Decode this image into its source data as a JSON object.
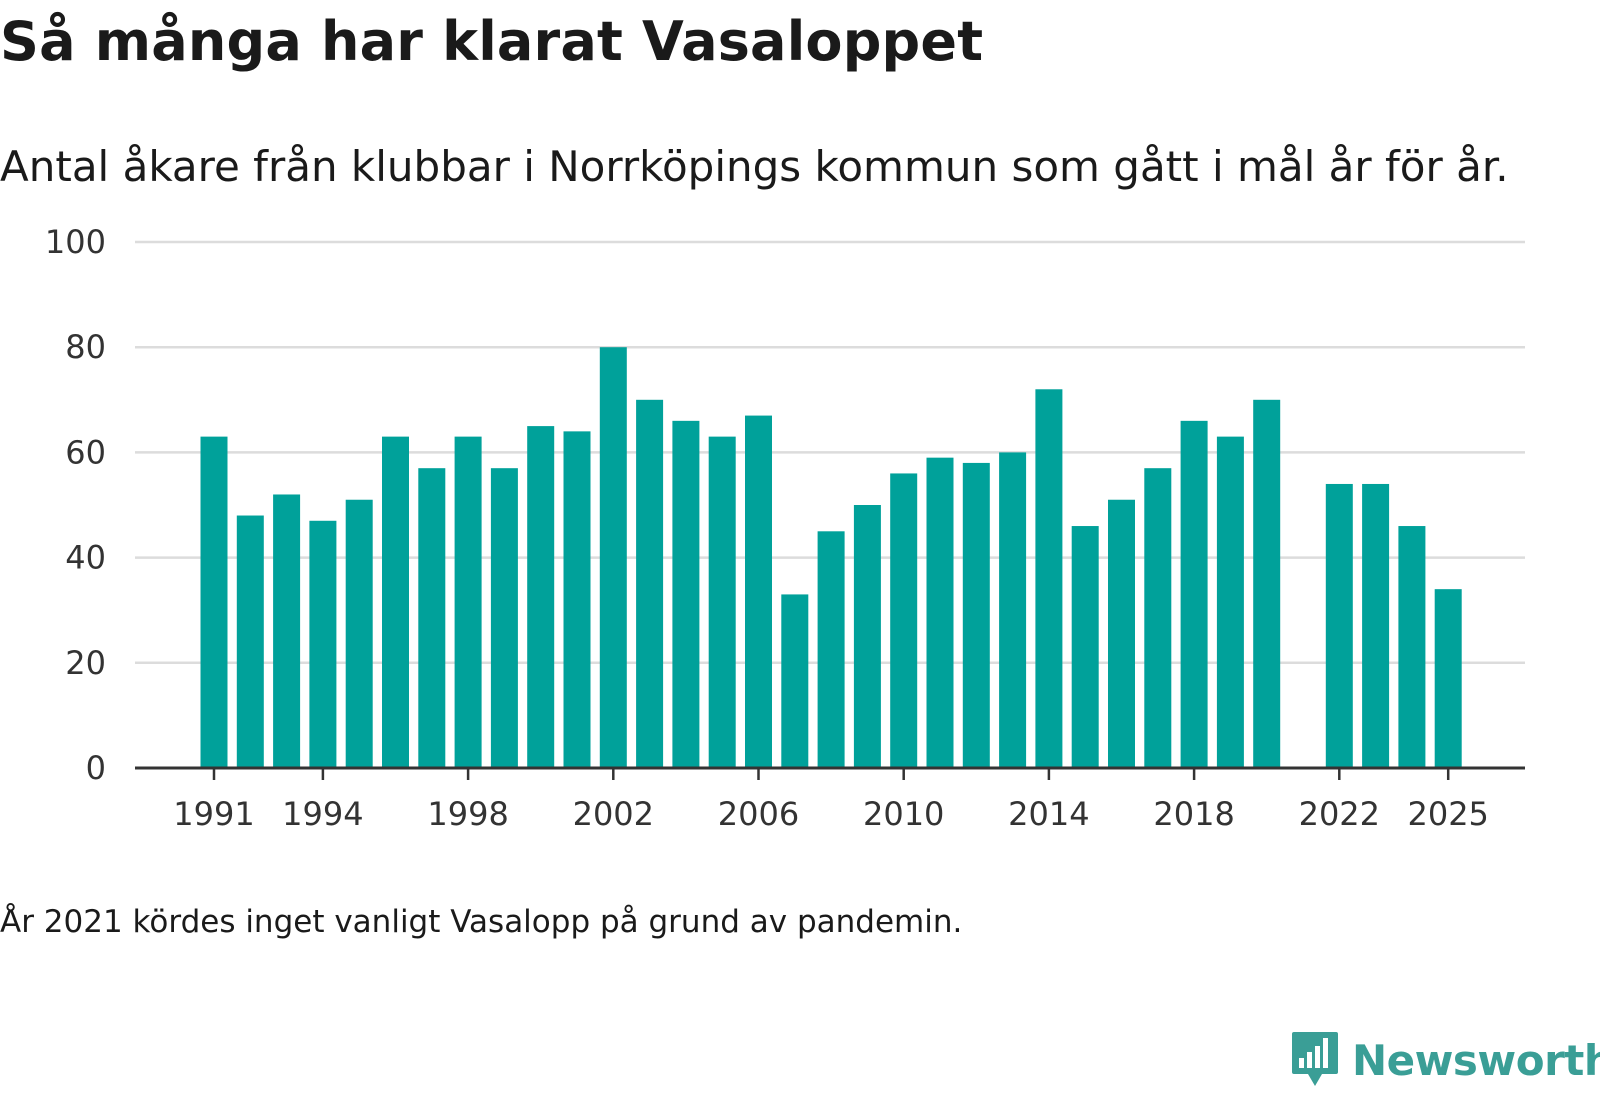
{
  "title": "Så många har klarat Vasaloppet",
  "subtitle": "Antal åkare från klubbar i Norrköpings kommun som gått i mål år för år.",
  "footnote": "År 2021 kördes inget vanligt Vasalopp på grund av pandemin.",
  "logo": {
    "text": "Newsworthy",
    "color": "#3a9e96"
  },
  "colors": {
    "bar": "#00a19a",
    "grid": "#dcdcdc",
    "axis": "#333333",
    "text": "#333333"
  },
  "chart_data": {
    "type": "bar",
    "title": "Så många har klarat Vasaloppet",
    "xlabel": "",
    "ylabel": "",
    "ylim": [
      0,
      100
    ],
    "yticks": [
      0,
      20,
      40,
      60,
      80,
      100
    ],
    "xtick_labels": [
      "1991",
      "1994",
      "1998",
      "2002",
      "2006",
      "2010",
      "2014",
      "2018",
      "2022",
      "2025"
    ],
    "grid": true,
    "categories": [
      1991,
      1992,
      1993,
      1994,
      1995,
      1996,
      1997,
      1998,
      1999,
      2000,
      2001,
      2002,
      2003,
      2004,
      2005,
      2006,
      2007,
      2008,
      2009,
      2010,
      2011,
      2012,
      2013,
      2014,
      2015,
      2016,
      2017,
      2018,
      2019,
      2020,
      2021,
      2022,
      2023,
      2024,
      2025
    ],
    "values": [
      63,
      48,
      52,
      47,
      51,
      63,
      57,
      63,
      57,
      65,
      64,
      80,
      70,
      66,
      63,
      67,
      33,
      45,
      50,
      56,
      59,
      58,
      60,
      72,
      46,
      51,
      57,
      66,
      63,
      70,
      null,
      54,
      54,
      46,
      34
    ]
  }
}
